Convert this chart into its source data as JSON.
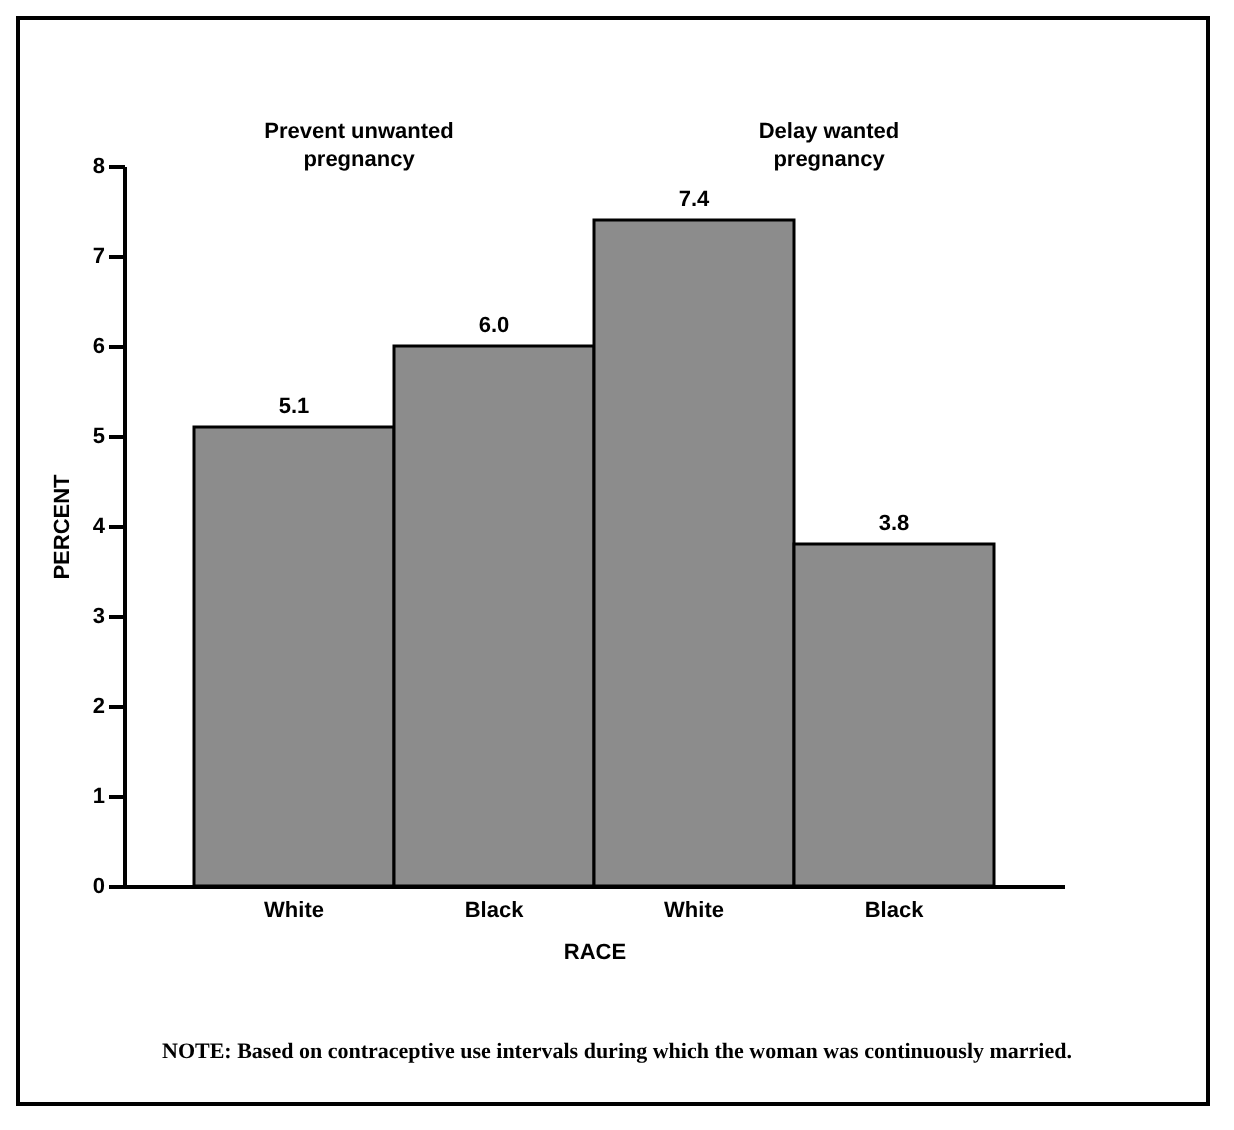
{
  "chart_data": {
    "type": "bar",
    "xlabel": "RACE",
    "ylabel": "PERCENT",
    "categories": [
      "White",
      "Black",
      "White",
      "Black"
    ],
    "values": [
      5.1,
      6.0,
      7.4,
      3.8
    ],
    "value_labels": [
      "5.1",
      "6.0",
      "7.4",
      "3.8"
    ],
    "color": "#8c8c8c",
    "ylim": [
      0,
      8
    ],
    "yticks": [
      0,
      1,
      2,
      3,
      4,
      5,
      6,
      7,
      8
    ],
    "grid": false,
    "annotations": [
      "Prevent unwanted pregnancy",
      "Delay wanted pregnancy",
      "NOTE: Based on contraceptive use intervals during which the woman was continuously married."
    ]
  }
}
